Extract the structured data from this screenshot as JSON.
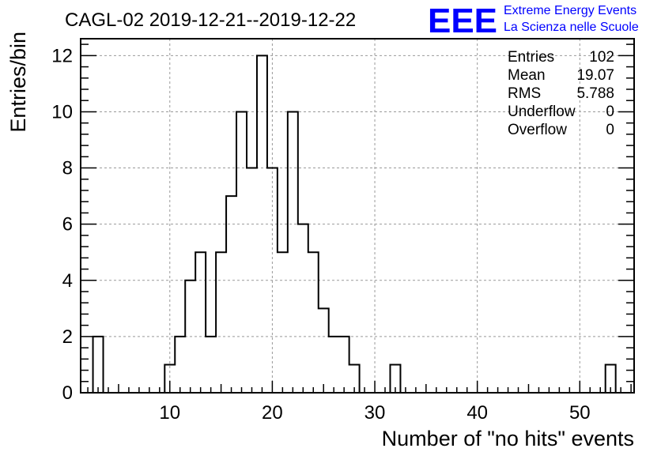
{
  "title": "CAGL-02 2019-12-21--2019-12-22",
  "logo": {
    "letters": "EEE",
    "line1": "Extreme Energy Events",
    "line2": "La Scienza nelle Scuole",
    "color": "#0000ff"
  },
  "stats": [
    {
      "label": "Entries",
      "value": "102"
    },
    {
      "label": "Mean",
      "value": "19.07"
    },
    {
      "label": "RMS",
      "value": "5.788"
    },
    {
      "label": "Underflow",
      "value": "0"
    },
    {
      "label": "Overflow",
      "value": "0"
    }
  ],
  "chart_data": {
    "type": "bar",
    "style": "step-histogram",
    "xlabel": "Number of \"no hits\" events",
    "ylabel": "Entries/bin",
    "xlim": [
      1.3,
      55.3
    ],
    "ylim": [
      0,
      12.6
    ],
    "bin_width": 1,
    "x_ticks": [
      10,
      20,
      30,
      40,
      50
    ],
    "y_ticks": [
      0,
      2,
      4,
      6,
      8,
      10,
      12
    ],
    "grid": true,
    "legend": "none",
    "bins": [
      {
        "x": 3,
        "y": 2
      },
      {
        "x": 10,
        "y": 1
      },
      {
        "x": 11,
        "y": 2
      },
      {
        "x": 12,
        "y": 4
      },
      {
        "x": 13,
        "y": 5
      },
      {
        "x": 14,
        "y": 2
      },
      {
        "x": 15,
        "y": 5
      },
      {
        "x": 16,
        "y": 7
      },
      {
        "x": 17,
        "y": 10
      },
      {
        "x": 18,
        "y": 8
      },
      {
        "x": 19,
        "y": 12
      },
      {
        "x": 20,
        "y": 8
      },
      {
        "x": 21,
        "y": 5
      },
      {
        "x": 22,
        "y": 10
      },
      {
        "x": 23,
        "y": 6
      },
      {
        "x": 24,
        "y": 5
      },
      {
        "x": 25,
        "y": 3
      },
      {
        "x": 26,
        "y": 2
      },
      {
        "x": 27,
        "y": 2
      },
      {
        "x": 28,
        "y": 1
      },
      {
        "x": 32,
        "y": 1
      },
      {
        "x": 53,
        "y": 1
      }
    ]
  }
}
